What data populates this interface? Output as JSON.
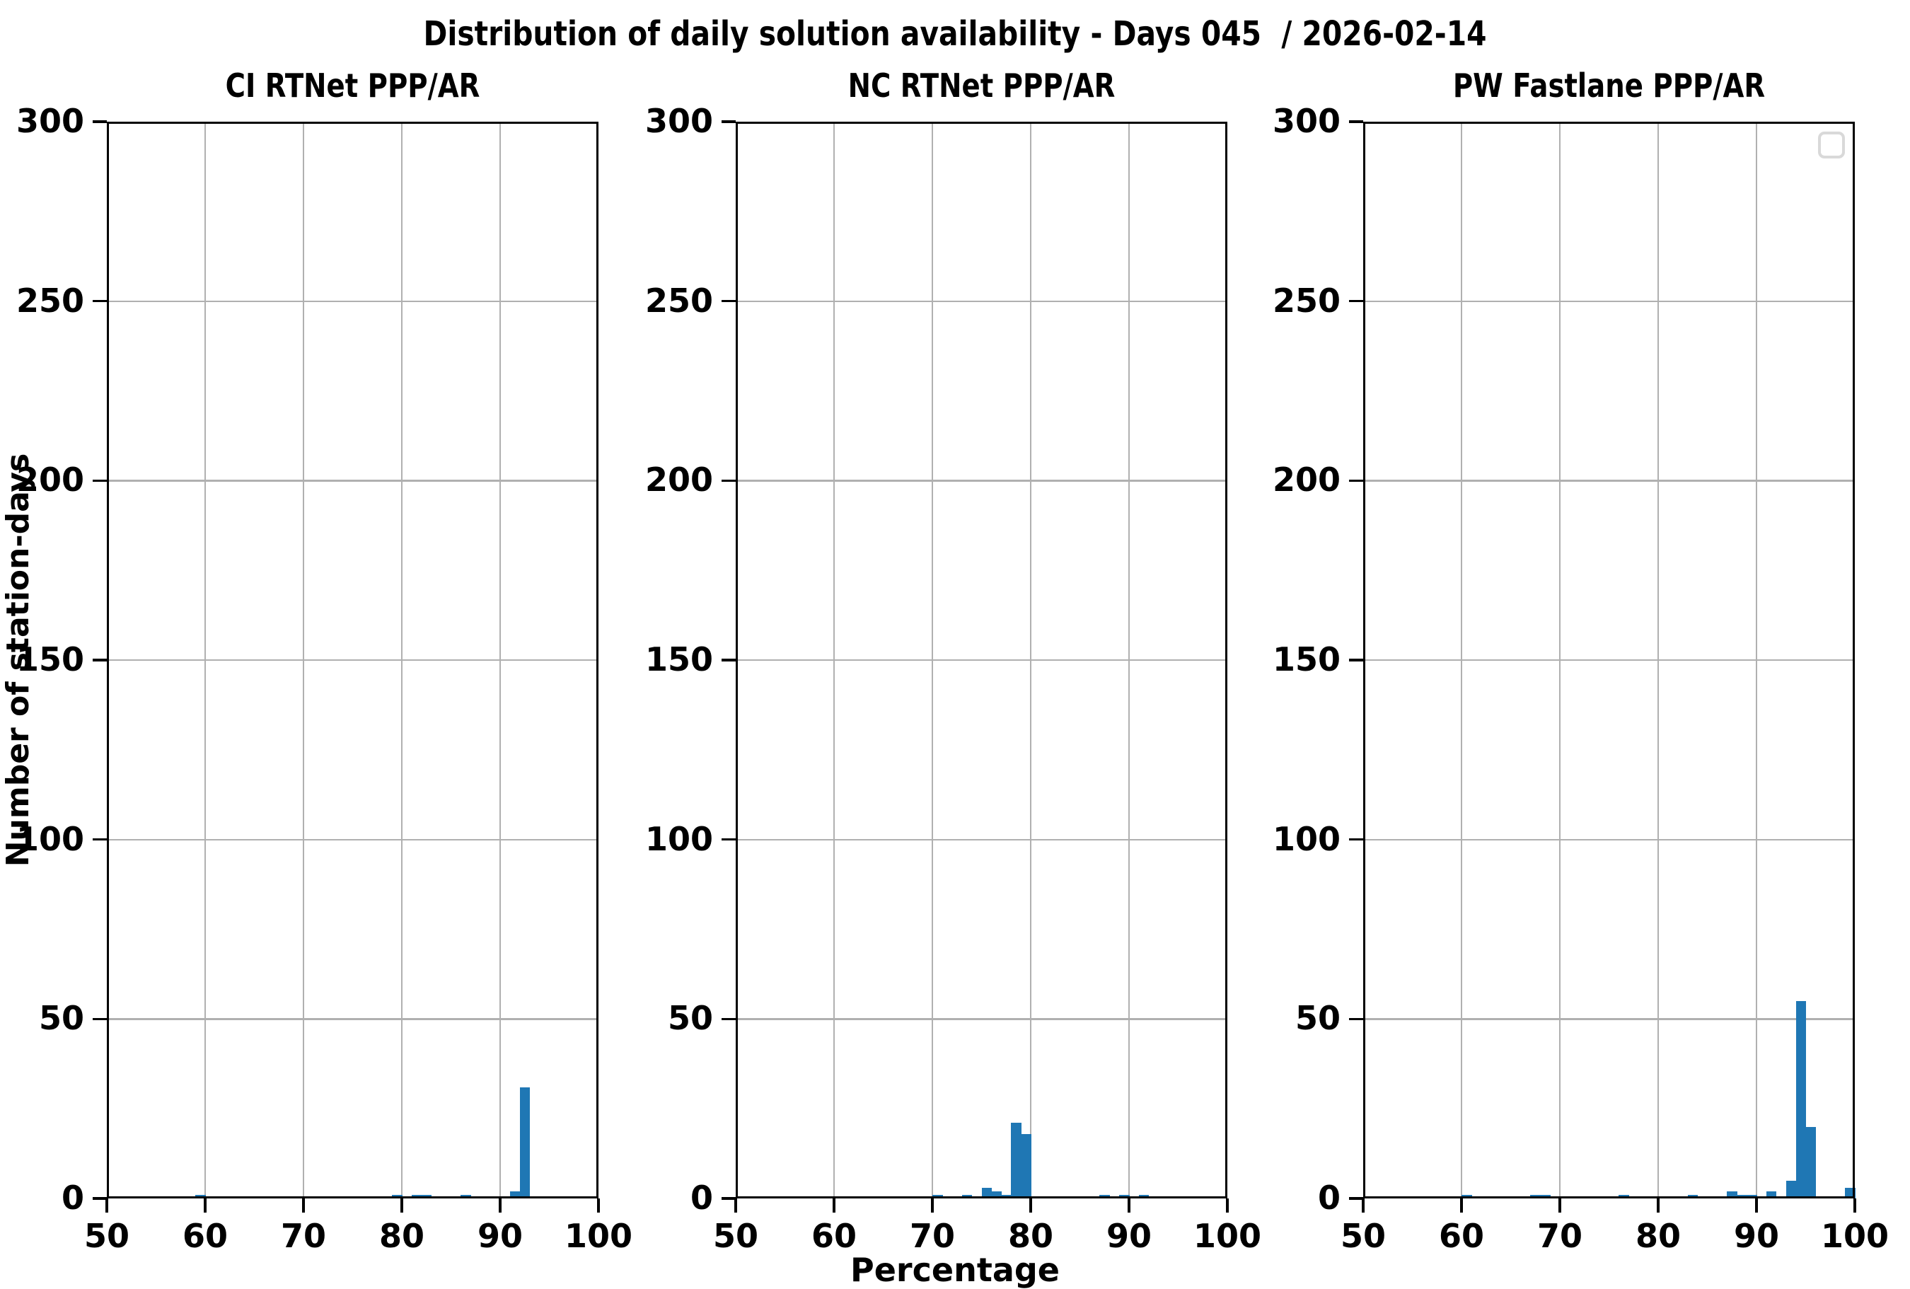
{
  "figure": {
    "title": "Distribution of daily solution availability - Days 045  / 2026-02-14",
    "xlabel": "Percentage",
    "ylabel": "Number of station-days"
  },
  "colors": {
    "bar": "#1f77b4",
    "grid": "#b0b0b0",
    "spine": "#000000",
    "legend_border": "#d9d9d9",
    "background": "#ffffff"
  },
  "legend": {
    "present_on": "PW Fastlane PPP/AR",
    "items": []
  },
  "chart_data": [
    {
      "type": "bar",
      "subtype": "histogram",
      "title": "CI RTNet PPP/AR",
      "xlabel": "Percentage",
      "ylabel": "Number of station-days",
      "xlim": [
        50,
        100
      ],
      "ylim": [
        0,
        300
      ],
      "xticks": [
        50,
        60,
        70,
        80,
        90,
        100
      ],
      "yticks": [
        0,
        50,
        100,
        150,
        200,
        250,
        300
      ],
      "grid": true,
      "bin_width": 1,
      "bars": [
        {
          "x": 59,
          "count": 1
        },
        {
          "x": 79,
          "count": 1
        },
        {
          "x": 81,
          "count": 1
        },
        {
          "x": 82,
          "count": 1
        },
        {
          "x": 86,
          "count": 1
        },
        {
          "x": 91,
          "count": 2
        },
        {
          "x": 92,
          "count": 31
        }
      ]
    },
    {
      "type": "bar",
      "subtype": "histogram",
      "title": "NC RTNet PPP/AR",
      "xlabel": "Percentage",
      "ylabel": "Number of station-days",
      "xlim": [
        50,
        100
      ],
      "ylim": [
        0,
        300
      ],
      "xticks": [
        50,
        60,
        70,
        80,
        90,
        100
      ],
      "yticks": [
        0,
        50,
        100,
        150,
        200,
        250,
        300
      ],
      "grid": true,
      "bin_width": 1,
      "bars": [
        {
          "x": 70,
          "count": 1
        },
        {
          "x": 73,
          "count": 1
        },
        {
          "x": 75,
          "count": 3
        },
        {
          "x": 76,
          "count": 2
        },
        {
          "x": 77,
          "count": 1
        },
        {
          "x": 78,
          "count": 21
        },
        {
          "x": 79,
          "count": 18
        },
        {
          "x": 87,
          "count": 1
        },
        {
          "x": 89,
          "count": 1
        },
        {
          "x": 91,
          "count": 1
        }
      ]
    },
    {
      "type": "bar",
      "subtype": "histogram",
      "title": "PW Fastlane PPP/AR",
      "xlabel": "Percentage",
      "ylabel": "Number of station-days",
      "xlim": [
        50,
        100
      ],
      "ylim": [
        0,
        300
      ],
      "xticks": [
        50,
        60,
        70,
        80,
        90,
        100
      ],
      "yticks": [
        0,
        50,
        100,
        150,
        200,
        250,
        300
      ],
      "grid": true,
      "bin_width": 1,
      "bars": [
        {
          "x": 60,
          "count": 1
        },
        {
          "x": 67,
          "count": 1
        },
        {
          "x": 68,
          "count": 1
        },
        {
          "x": 76,
          "count": 1
        },
        {
          "x": 83,
          "count": 1
        },
        {
          "x": 87,
          "count": 2
        },
        {
          "x": 88,
          "count": 1
        },
        {
          "x": 89,
          "count": 1
        },
        {
          "x": 91,
          "count": 2
        },
        {
          "x": 93,
          "count": 5
        },
        {
          "x": 94,
          "count": 55
        },
        {
          "x": 95,
          "count": 20
        },
        {
          "x": 99,
          "count": 3
        }
      ]
    }
  ]
}
